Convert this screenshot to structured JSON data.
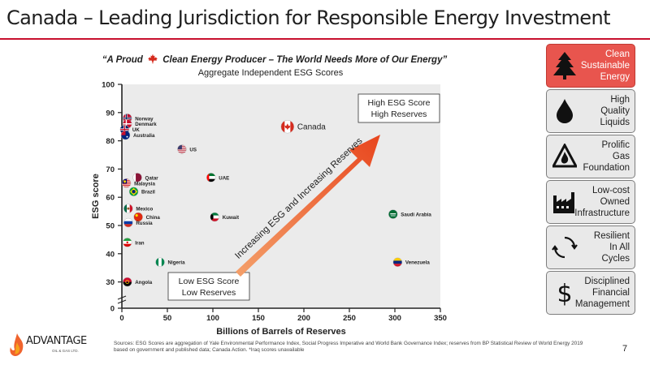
{
  "page": {
    "title": "Canada – Leading Jurisdiction for Responsible Energy Investment",
    "tagline_before": "“A Proud",
    "tagline_after": "Clean Energy Producer – The World Needs More of Our Energy”",
    "page_number": "7",
    "sources": "Sources: ESG Scores are aggregation of Yale Environmental Performance Index, Social Progress Imperative and World Bank Governance Index; reserves from BP Statistical Review of World Energy 2019 based on government and published data; Canada Action. *Iraq scores unavailable",
    "accent_color": "#c8102e"
  },
  "logo": {
    "name": "ADVANTAGE",
    "sub": "OIL & GAS LTD."
  },
  "sidebar": {
    "items": [
      {
        "label": "Clean\nSustainable\nEnergy",
        "icon": "tree-icon",
        "active": true
      },
      {
        "label": "High\nQuality\nLiquids",
        "icon": "droplet-icon",
        "active": false
      },
      {
        "label": "Prolific\nGas\nFoundation",
        "icon": "gas-flame-icon",
        "active": false
      },
      {
        "label": "Low-cost\nOwned\nInfrastructure",
        "icon": "factory-icon",
        "active": false
      },
      {
        "label": "Resilient\nIn All\nCycles",
        "icon": "cycle-arrows-icon",
        "active": false
      },
      {
        "label": "Disciplined\nFinancial\nManagement",
        "icon": "dollar-icon",
        "active": false
      }
    ]
  },
  "chart_data": {
    "type": "scatter",
    "title": "Aggregate Independent ESG Scores",
    "xlabel": "Billions of Barrels of Reserves",
    "ylabel": "ESG score",
    "xlim": [
      0,
      350
    ],
    "ylim": [
      0,
      100
    ],
    "y_axis_break": true,
    "x_ticks": [
      0,
      50,
      100,
      150,
      200,
      250,
      300,
      350
    ],
    "y_ticks": [
      0,
      30,
      40,
      50,
      60,
      70,
      80,
      90,
      100
    ],
    "grid": false,
    "background": "#ebebeb",
    "points": [
      {
        "label": "Norway",
        "x": 6,
        "y": 88
      },
      {
        "label": "Denmark",
        "x": 6,
        "y": 86
      },
      {
        "label": "UK",
        "x": 3,
        "y": 84
      },
      {
        "label": "Australia",
        "x": 4,
        "y": 82
      },
      {
        "label": "US",
        "x": 66,
        "y": 77
      },
      {
        "label": "Canada",
        "x": 182,
        "y": 85
      },
      {
        "label": "Qatar",
        "x": 17,
        "y": 67
      },
      {
        "label": "Malaysia",
        "x": 5,
        "y": 65
      },
      {
        "label": "Brazil",
        "x": 13,
        "y": 62
      },
      {
        "label": "UAE",
        "x": 98,
        "y": 67
      },
      {
        "label": "Mexico",
        "x": 7,
        "y": 56
      },
      {
        "label": "China",
        "x": 18,
        "y": 53
      },
      {
        "label": "Russia",
        "x": 7,
        "y": 51
      },
      {
        "label": "Kuwait",
        "x": 102,
        "y": 53
      },
      {
        "label": "Saudi Arabia",
        "x": 298,
        "y": 54
      },
      {
        "label": "Iran",
        "x": 6,
        "y": 44
      },
      {
        "label": "Nigeria",
        "x": 42,
        "y": 37
      },
      {
        "label": "Venezuela",
        "x": 303,
        "y": 37
      },
      {
        "label": "Angola",
        "x": 6,
        "y": 30
      }
    ],
    "annotations": {
      "top_right_line1": "High ESG Score",
      "top_right_line2": "High Reserves",
      "bottom_left_line1": "Low ESG Score",
      "bottom_left_line2": "Low Reserves",
      "arrow_label": "Increasing ESG and Increasing Reserves"
    }
  }
}
